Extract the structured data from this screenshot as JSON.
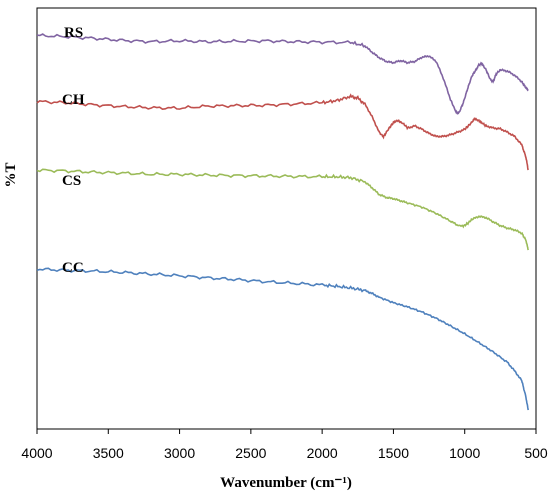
{
  "chart_data": {
    "type": "line",
    "title": "",
    "xlabel": "Wavenumber (cm⁻¹)",
    "ylabel": "%T",
    "xlim": [
      4000,
      500
    ],
    "x_reversed": true,
    "x_ticks": [
      "4000",
      "3500",
      "3000",
      "2500",
      "2000",
      "1500",
      "1000",
      "500"
    ],
    "grid": false,
    "legend": "inline labels beside each curve",
    "y_tick_labels": false,
    "ylim": [
      0,
      100
    ],
    "series": [
      {
        "name": "RS",
        "color": "#8064A2",
        "points": [
          [
            4000,
            93.5
          ],
          [
            3800,
            93.2
          ],
          [
            3600,
            92.8
          ],
          [
            3400,
            92.3
          ],
          [
            3200,
            92.0
          ],
          [
            3000,
            92.2
          ],
          [
            2800,
            92.0
          ],
          [
            2600,
            92.1
          ],
          [
            2400,
            92.2
          ],
          [
            2200,
            92.0
          ],
          [
            2000,
            91.9
          ],
          [
            1800,
            91.8
          ],
          [
            1700,
            91.0
          ],
          [
            1650,
            89.5
          ],
          [
            1600,
            88.2
          ],
          [
            1550,
            87.3
          ],
          [
            1500,
            87.0
          ],
          [
            1450,
            87.5
          ],
          [
            1400,
            87.0
          ],
          [
            1350,
            87.3
          ],
          [
            1300,
            88.3
          ],
          [
            1250,
            88.6
          ],
          [
            1200,
            87.3
          ],
          [
            1150,
            83.3
          ],
          [
            1100,
            78.3
          ],
          [
            1060,
            75.2
          ],
          [
            1040,
            75.1
          ],
          [
            1010,
            77.5
          ],
          [
            980,
            80.8
          ],
          [
            950,
            83.8
          ],
          [
            920,
            85.4
          ],
          [
            900,
            86.5
          ],
          [
            880,
            86.8
          ],
          [
            850,
            85.3
          ],
          [
            820,
            83.0
          ],
          [
            800,
            82.5
          ],
          [
            780,
            84.3
          ],
          [
            750,
            85.3
          ],
          [
            700,
            85.0
          ],
          [
            650,
            84.0
          ],
          [
            600,
            82.5
          ],
          [
            570,
            81.0
          ],
          [
            555,
            80.5
          ]
        ]
      },
      {
        "name": "CH",
        "color": "#C0504D",
        "points": [
          [
            4000,
            77.8
          ],
          [
            3800,
            77.5
          ],
          [
            3600,
            77.0
          ],
          [
            3400,
            76.6
          ],
          [
            3200,
            76.3
          ],
          [
            3000,
            76.2
          ],
          [
            2800,
            76.7
          ],
          [
            2600,
            76.8
          ],
          [
            2400,
            76.9
          ],
          [
            2200,
            77.2
          ],
          [
            2000,
            77.5
          ],
          [
            1900,
            78.0
          ],
          [
            1800,
            79.0
          ],
          [
            1750,
            78.6
          ],
          [
            1700,
            77.2
          ],
          [
            1650,
            74.2
          ],
          [
            1600,
            70.5
          ],
          [
            1570,
            69.4
          ],
          [
            1540,
            71.0
          ],
          [
            1500,
            72.8
          ],
          [
            1470,
            73.3
          ],
          [
            1430,
            72.5
          ],
          [
            1400,
            71.5
          ],
          [
            1350,
            72.0
          ],
          [
            1300,
            71.2
          ],
          [
            1250,
            70.2
          ],
          [
            1200,
            69.5
          ],
          [
            1150,
            69.5
          ],
          [
            1100,
            69.9
          ],
          [
            1050,
            70.5
          ],
          [
            1000,
            71.2
          ],
          [
            960,
            72.5
          ],
          [
            930,
            73.7
          ],
          [
            900,
            73.2
          ],
          [
            870,
            72.5
          ],
          [
            850,
            72.0
          ],
          [
            800,
            71.5
          ],
          [
            750,
            71.3
          ],
          [
            700,
            70.5
          ],
          [
            650,
            69.5
          ],
          [
            600,
            67.5
          ],
          [
            570,
            64.5
          ],
          [
            555,
            61.5
          ]
        ]
      },
      {
        "name": "CS",
        "color": "#9BBB59",
        "points": [
          [
            4000,
            61.5
          ],
          [
            3800,
            61.3
          ],
          [
            3600,
            61.0
          ],
          [
            3400,
            60.8
          ],
          [
            3200,
            60.5
          ],
          [
            3000,
            60.5
          ],
          [
            2800,
            60.3
          ],
          [
            2600,
            60.2
          ],
          [
            2400,
            60.1
          ],
          [
            2200,
            60.0
          ],
          [
            2000,
            59.9
          ],
          [
            1900,
            59.9
          ],
          [
            1800,
            59.7
          ],
          [
            1700,
            58.7
          ],
          [
            1650,
            57.3
          ],
          [
            1600,
            55.7
          ],
          [
            1550,
            55.0
          ],
          [
            1500,
            54.7
          ],
          [
            1450,
            54.2
          ],
          [
            1400,
            53.7
          ],
          [
            1300,
            52.7
          ],
          [
            1200,
            51.2
          ],
          [
            1100,
            49.4
          ],
          [
            1050,
            48.4
          ],
          [
            1010,
            48.2
          ],
          [
            980,
            48.8
          ],
          [
            950,
            49.8
          ],
          [
            900,
            50.5
          ],
          [
            850,
            50.2
          ],
          [
            800,
            49.2
          ],
          [
            750,
            48.3
          ],
          [
            700,
            47.7
          ],
          [
            650,
            47.3
          ],
          [
            600,
            46.5
          ],
          [
            570,
            44.8
          ],
          [
            555,
            42.5
          ]
        ]
      },
      {
        "name": "CC",
        "color": "#4F81BD",
        "points": [
          [
            4000,
            38.0
          ],
          [
            3800,
            37.7
          ],
          [
            3600,
            37.5
          ],
          [
            3400,
            37.2
          ],
          [
            3200,
            36.8
          ],
          [
            3000,
            36.4
          ],
          [
            2800,
            35.9
          ],
          [
            2600,
            35.5
          ],
          [
            2400,
            35.0
          ],
          [
            2200,
            34.6
          ],
          [
            2000,
            34.2
          ],
          [
            1900,
            33.9
          ],
          [
            1800,
            33.5
          ],
          [
            1700,
            32.9
          ],
          [
            1650,
            32.2
          ],
          [
            1600,
            31.3
          ],
          [
            1500,
            30.0
          ],
          [
            1400,
            29.0
          ],
          [
            1300,
            27.8
          ],
          [
            1200,
            26.3
          ],
          [
            1100,
            24.5
          ],
          [
            1000,
            22.6
          ],
          [
            900,
            20.5
          ],
          [
            800,
            18.3
          ],
          [
            700,
            15.8
          ],
          [
            650,
            13.8
          ],
          [
            600,
            11.5
          ],
          [
            570,
            7.5
          ],
          [
            555,
            4.5
          ]
        ]
      }
    ]
  }
}
